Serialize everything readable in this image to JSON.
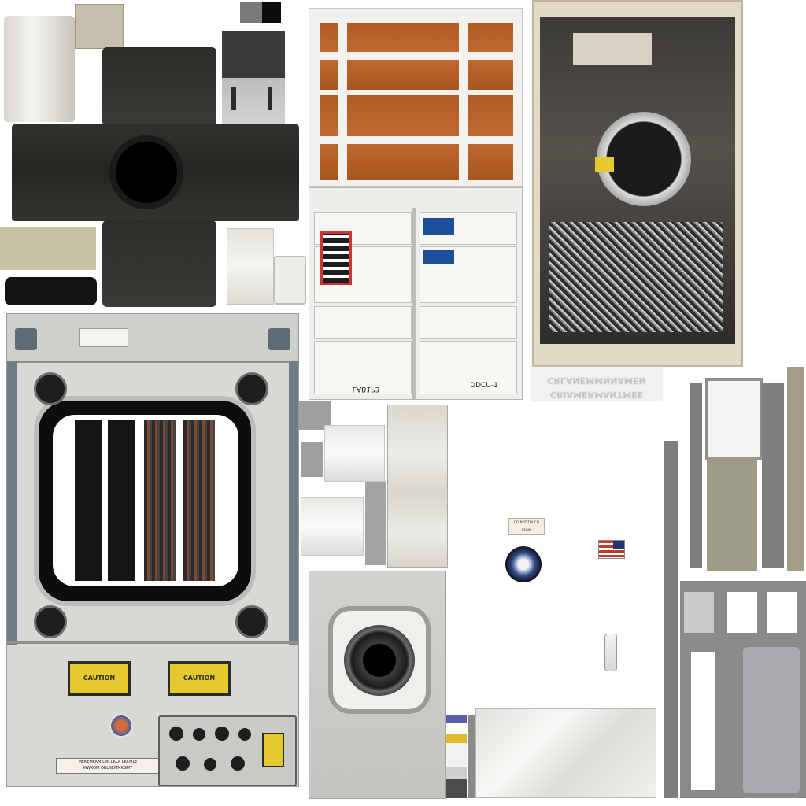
{
  "atlas": {
    "background": "#ffffff",
    "accent_colors": {
      "panel_grey": "#d7d7d3",
      "hatch_dark": "#1e1e1e",
      "mlb_orange": "#b5622b",
      "caution_yellow": "#e6c92d",
      "rack_cream": "#e3dac6",
      "cloth_white": "#ecebe6"
    }
  },
  "hatch_panel": {
    "warning_upper_left": "CAUTION",
    "warning_upper_right": "CAUTION",
    "bottom_label_line1": "MEKEMEKM LWCLKLA LKCMLE",
    "bottom_label_line2": "MWKOM OBLNEMMKGMT"
  },
  "stowage_rack": {
    "label_left": "LAB1P3",
    "label_right": "DDCU-1"
  },
  "small_decals": {
    "warning_tag": "DO NOT TOUCH BEGIN",
    "flag": "us-flag-icon",
    "mission_patch": "mission-patch-icon"
  },
  "mirrored_text_strip": {
    "line1": "CRIAMERMANTMEE",
    "line2": "CRLANEMMNNAMEN"
  }
}
